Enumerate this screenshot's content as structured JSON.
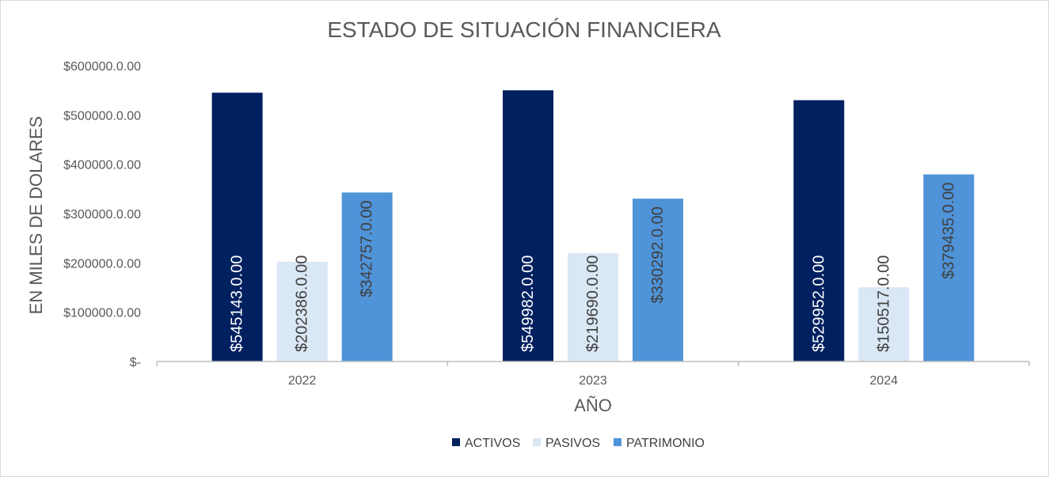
{
  "chart_data": {
    "type": "bar",
    "title": "ESTADO DE SITUACIÓN FINANCIERA",
    "xlabel": "AÑO",
    "ylabel": "EN MILES DE DOLARES",
    "categories": [
      "2022",
      "2023",
      "2024"
    ],
    "ylim": [
      0,
      600000
    ],
    "y_ticks": [
      {
        "value": 0,
        "label": "$-"
      },
      {
        "value": 100000,
        "label": "$100000.0.00"
      },
      {
        "value": 200000,
        "label": "$200000.0.00"
      },
      {
        "value": 300000,
        "label": "$300000.0.00"
      },
      {
        "value": 400000,
        "label": "$400000.0.00"
      },
      {
        "value": 500000,
        "label": "$500000.0.00"
      },
      {
        "value": 600000,
        "label": "$600000.0.00"
      }
    ],
    "grid": false,
    "legend_position": "bottom",
    "series": [
      {
        "name": "ACTIVOS",
        "color": "#002060",
        "label_color": "#ffffff",
        "values": [
          545143,
          549982,
          529952
        ],
        "labels": [
          "$545143.0.00",
          "$549982.0.00",
          "$529952.0.00"
        ]
      },
      {
        "name": "PASIVOS",
        "color": "#dae7f5",
        "label_color": "#404040",
        "values": [
          202386,
          219690,
          150517
        ],
        "labels": [
          "$202386.0.00",
          "$219690.0.00",
          "$150517.0.00"
        ]
      },
      {
        "name": "PATRIMONIO",
        "color": "#4f93d8",
        "label_color": "#404040",
        "values": [
          342757,
          330292,
          379435
        ],
        "labels": [
          "$342757.0.00",
          "$330292.0.00",
          "$379435.0.00"
        ]
      }
    ]
  }
}
